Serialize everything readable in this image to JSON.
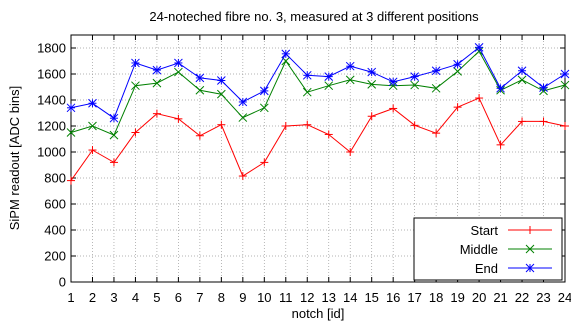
{
  "chart_data": {
    "type": "line",
    "title": "24-noteched fibre no. 3, measured at 3 different positions",
    "xlabel": "notch [id]",
    "ylabel": "SiPM readout [ADC bins]",
    "xlim": [
      1,
      24
    ],
    "ylim": [
      0,
      1900
    ],
    "xticks": [
      "1",
      "2",
      "3",
      "4",
      "5",
      "6",
      "7",
      "8",
      "9",
      "10",
      "11",
      "12",
      "13",
      "14",
      "15",
      "16",
      "17",
      "18",
      "19",
      "20",
      "21",
      "22",
      "23",
      "24"
    ],
    "yticks": [
      "0",
      "200",
      "400",
      "600",
      "800",
      "1000",
      "1200",
      "1400",
      "1600",
      "1800"
    ],
    "grid": true,
    "legend_position": "bottom-right",
    "x": [
      1,
      2,
      3,
      4,
      5,
      6,
      7,
      8,
      9,
      10,
      11,
      12,
      13,
      14,
      15,
      16,
      17,
      18,
      19,
      20,
      21,
      22,
      23,
      24
    ],
    "series": [
      {
        "name": "Start",
        "color": "#ff0000",
        "marker": "plus",
        "values": [
          780,
          1015,
          920,
          1150,
          1295,
          1255,
          1125,
          1210,
          815,
          920,
          1200,
          1210,
          1135,
          1000,
          1275,
          1335,
          1205,
          1145,
          1345,
          1415,
          1055,
          1235,
          1235,
          1200
        ]
      },
      {
        "name": "Middle",
        "color": "#008000",
        "marker": "cross",
        "values": [
          1150,
          1200,
          1130,
          1510,
          1530,
          1615,
          1475,
          1445,
          1265,
          1340,
          1700,
          1460,
          1510,
          1555,
          1520,
          1510,
          1515,
          1490,
          1620,
          1775,
          1475,
          1555,
          1470,
          1515
        ]
      },
      {
        "name": "End",
        "color": "#0000ff",
        "marker": "star",
        "values": [
          1340,
          1375,
          1260,
          1685,
          1630,
          1685,
          1570,
          1550,
          1385,
          1470,
          1755,
          1590,
          1580,
          1660,
          1615,
          1540,
          1580,
          1625,
          1675,
          1805,
          1490,
          1625,
          1495,
          1600
        ]
      }
    ]
  }
}
